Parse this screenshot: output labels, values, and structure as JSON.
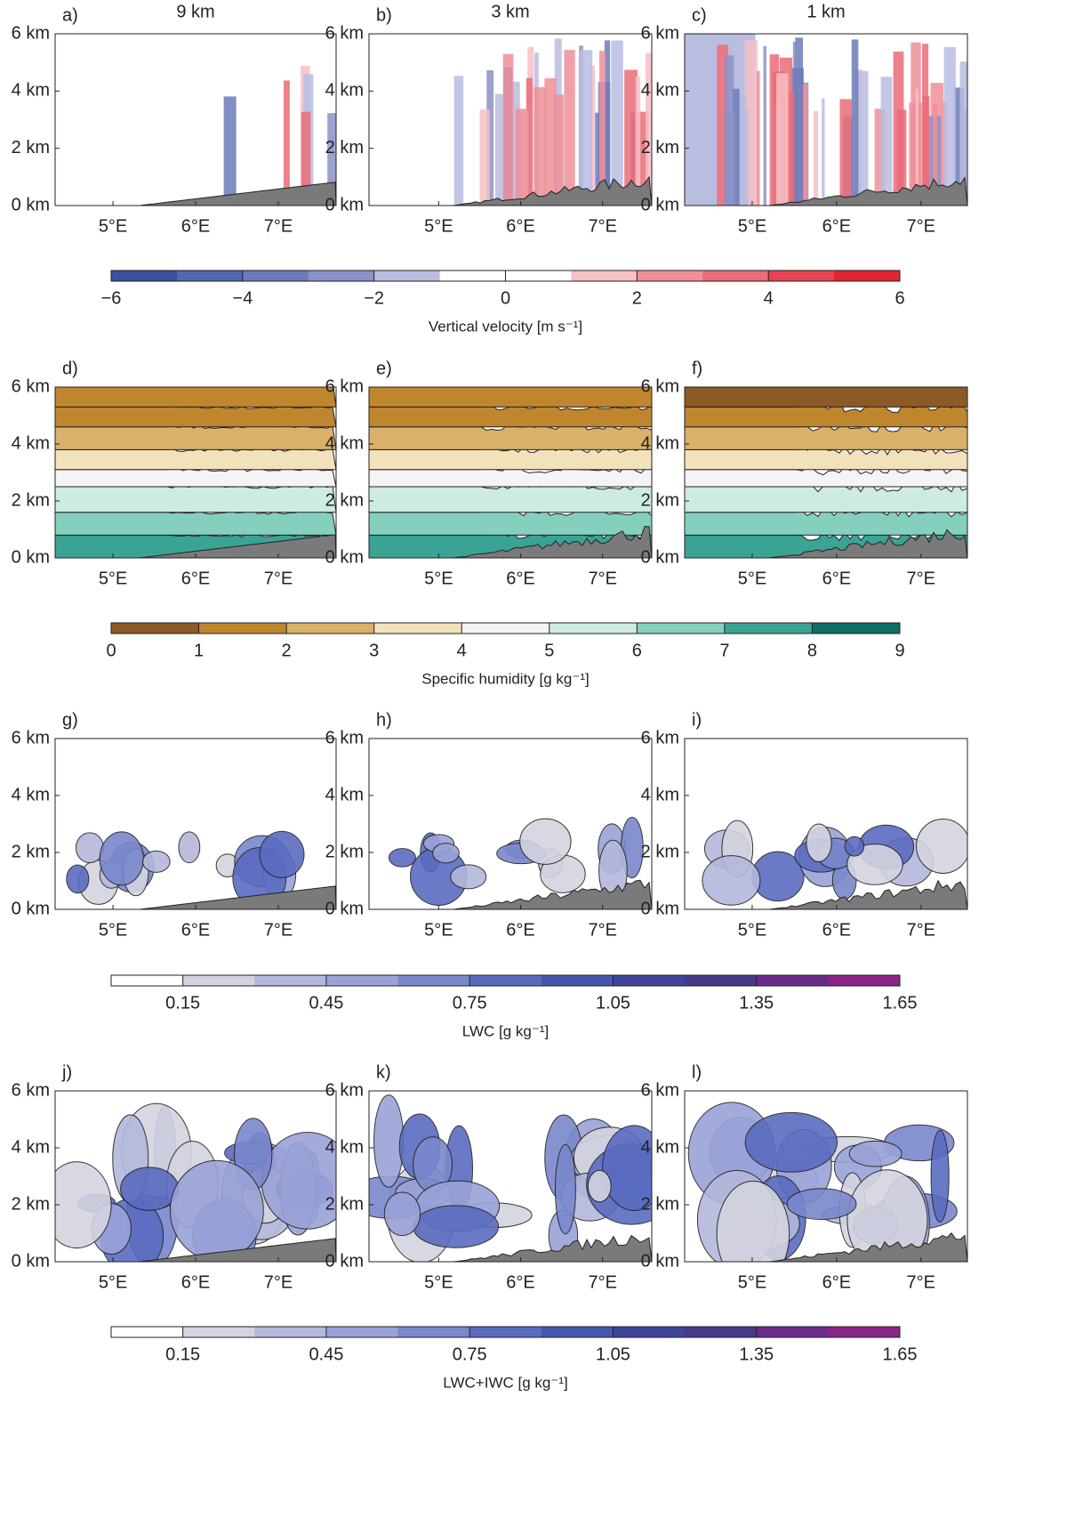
{
  "chart_data": {
    "type": "contour",
    "columns": [
      {
        "title": "9 km",
        "xlim": [
          4.3,
          7.7
        ]
      },
      {
        "title": "3 km",
        "xlim": [
          4.15,
          7.6
        ]
      },
      {
        "title": "1 km",
        "xlim": [
          4.2,
          7.55
        ]
      }
    ],
    "ylim": [
      0,
      6
    ],
    "yticks": [
      {
        "value": 0,
        "label": "0 km"
      },
      {
        "value": 2,
        "label": "2 km"
      },
      {
        "value": 4,
        "label": "4 km"
      },
      {
        "value": 6,
        "label": "6 km"
      }
    ],
    "xticks": [
      {
        "value": 5,
        "label": "5°E"
      },
      {
        "value": 6,
        "label": "6°E"
      },
      {
        "value": 7,
        "label": "7°E"
      }
    ],
    "rows": [
      {
        "panels": [
          "a)",
          "b)",
          "c)"
        ],
        "colorbar": {
          "label": "Vertical velocity [m s⁻¹]",
          "lim": [
            -6,
            6
          ],
          "ticks": [
            {
              "value": -6,
              "label": "−6"
            },
            {
              "value": -4,
              "label": "−4"
            },
            {
              "value": -2,
              "label": "−2"
            },
            0,
            2,
            4,
            6
          ],
          "colors": [
            "#3a4fa0",
            "#5566b0",
            "#6c7bbb",
            "#8b92c6",
            "#b9bde0",
            "#ffffff",
            "#ffffff",
            "#f6c0c6",
            "#ef8f99",
            "#ea6c78",
            "#e64452",
            "#e32530"
          ]
        }
      },
      {
        "panels": [
          "d)",
          "e)",
          "f)"
        ],
        "colorbar": {
          "label": "Specific humidity [g kg⁻¹]",
          "lim": [
            0,
            9
          ],
          "ticks": [
            0,
            1,
            2,
            3,
            4,
            5,
            6,
            7,
            8,
            9
          ],
          "colors": [
            "#8c5a25",
            "#c0862e",
            "#dab06a",
            "#f2e2bb",
            "#f4f4f6",
            "#cdebe3",
            "#84cfbd",
            "#3aa394",
            "#0f6e63"
          ]
        }
      },
      {
        "panels": [
          "g)",
          "h)",
          "i)"
        ],
        "colorbar": {
          "label": "LWC [g kg⁻¹]",
          "lim": [
            0,
            1.65
          ],
          "ticks": [
            0.15,
            0.45,
            0.75,
            1.05,
            1.35,
            1.65
          ],
          "colors": [
            "#ffffff",
            "#d4d4e0",
            "#b4b8dc",
            "#9aa3d8",
            "#7a88cc",
            "#5a6cc0",
            "#4456ae",
            "#40459a",
            "#4a3889",
            "#6a2c8a",
            "#8a2686"
          ]
        }
      },
      {
        "panels": [
          "j)",
          "k)",
          "l)"
        ],
        "colorbar": {
          "label": "LWC+IWC [g kg⁻¹]",
          "lim": [
            0,
            1.65
          ],
          "ticks": [
            0.15,
            0.45,
            0.75,
            1.05,
            1.35,
            1.65
          ],
          "colors": [
            "#ffffff",
            "#d4d4e0",
            "#b4b8dc",
            "#9aa3d8",
            "#7a88cc",
            "#5a6cc0",
            "#4456ae",
            "#40459a",
            "#4a3889",
            "#6a2c8a",
            "#8a2686"
          ]
        }
      }
    ]
  }
}
